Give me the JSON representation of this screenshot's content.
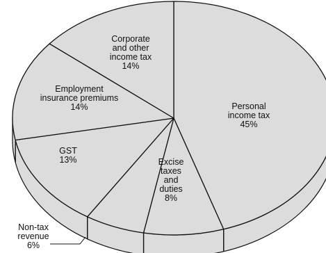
{
  "chart_data": {
    "type": "pie",
    "style": "3d",
    "title": "",
    "fill_color": "#dcdcdc",
    "edge_color": "#111111",
    "slices": [
      {
        "label_lines": [
          "Personal",
          "income tax",
          "45%"
        ],
        "value": 45
      },
      {
        "label_lines": [
          "Excise",
          "taxes",
          "and",
          "duties",
          "8%"
        ],
        "value": 8
      },
      {
        "label_lines": [
          "Non-tax",
          "revenue",
          "6%"
        ],
        "value": 6
      },
      {
        "label_lines": [
          "GST",
          "13%"
        ],
        "value": 13
      },
      {
        "label_lines": [
          "Employment",
          "insurance premiums",
          "14%"
        ],
        "value": 14
      },
      {
        "label_lines": [
          "Corporate",
          "and other",
          "income tax",
          "14%"
        ],
        "value": 14
      }
    ]
  }
}
